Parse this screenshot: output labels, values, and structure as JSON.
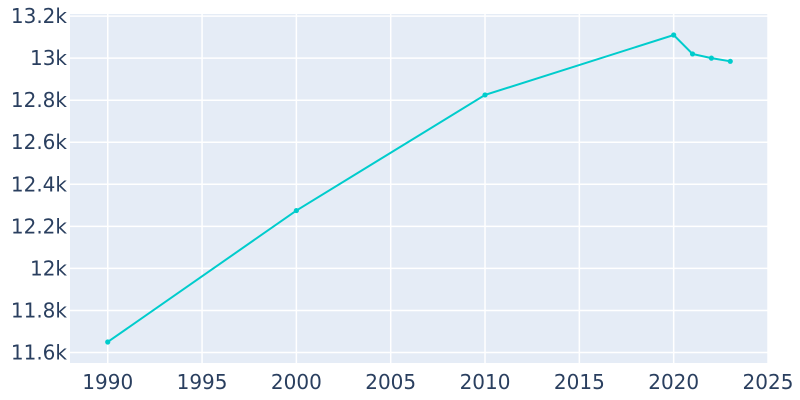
{
  "chart_data": {
    "type": "line",
    "title": "",
    "xlabel": "",
    "ylabel": "",
    "x": [
      1990,
      2000,
      2010,
      2020,
      2021,
      2022,
      2023
    ],
    "series": [
      {
        "values": [
          11650,
          12275,
          12825,
          13110,
          13020,
          13000,
          12985
        ]
      }
    ],
    "xlim": [
      1988,
      2025
    ],
    "ylim": [
      11550,
      13210
    ],
    "x_ticks": [
      1990,
      1995,
      2000,
      2005,
      2010,
      2015,
      2020,
      2025
    ],
    "y_ticks": [
      11600,
      11800,
      12000,
      12200,
      12400,
      12600,
      12800,
      13000,
      13200
    ],
    "x_tick_labels": [
      "1990",
      "1995",
      "2000",
      "2005",
      "2010",
      "2015",
      "2020",
      "2025"
    ],
    "y_tick_labels": [
      "11.6k",
      "11.8k",
      "12k",
      "12.2k",
      "12.4k",
      "12.6k",
      "12.8k",
      "13k",
      "13.2k"
    ],
    "grid": true,
    "legend": "none",
    "colors": {
      "line": "#00cccc",
      "plot_bg": "#e5ecf6",
      "grid": "#ffffff",
      "text": "#2a3f5f"
    }
  }
}
